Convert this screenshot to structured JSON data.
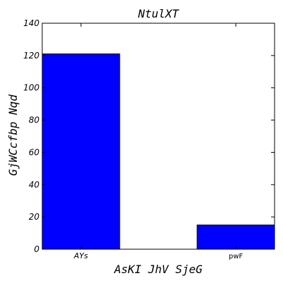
{
  "chart_data": {
    "type": "bar",
    "title": "NtulXT",
    "xlabel": "AsKI JhV SjeG",
    "ylabel": "GjWCcfbp Nqd",
    "categories": [
      "AYs",
      "pwF"
    ],
    "values": [
      121,
      15
    ],
    "ylim": [
      0,
      140
    ],
    "yticks": [
      0,
      20,
      40,
      60,
      80,
      100,
      120,
      140
    ],
    "grid": false,
    "legend": "none",
    "bar_color": "#0000ff"
  }
}
